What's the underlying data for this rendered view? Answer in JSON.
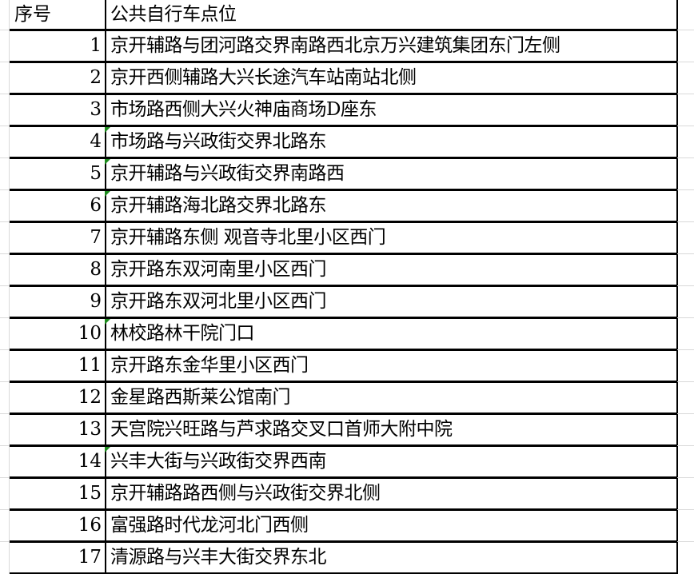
{
  "header": {
    "col_a": "序号",
    "col_b": "公共自行车点位"
  },
  "rows": [
    {
      "no": "1",
      "location": "京开辅路与团河路交界南路西北京万兴建筑集团东门左侧",
      "flag": false
    },
    {
      "no": "2",
      "location": "京开西侧辅路大兴长途汽车站南站北侧",
      "flag": false
    },
    {
      "no": "3",
      "location": "市场路西侧大兴火神庙商场D座东",
      "flag": false
    },
    {
      "no": "4",
      "location": "市场路与兴政街交界北路东",
      "flag": true
    },
    {
      "no": "5",
      "location": "京开辅路与兴政街交界南路西",
      "flag": true
    },
    {
      "no": "6",
      "location": "京开辅路海北路交界北路东",
      "flag": true
    },
    {
      "no": "7",
      "location": "京开辅路东侧 观音寺北里小区西门",
      "flag": false
    },
    {
      "no": "8",
      "location": "京开路东双河南里小区西门",
      "flag": false
    },
    {
      "no": "9",
      "location": "京开路东双河北里小区西门",
      "flag": false
    },
    {
      "no": "10",
      "location": "林校路林干院门口",
      "flag": true
    },
    {
      "no": "11",
      "location": "京开路东金华里小区西门",
      "flag": false
    },
    {
      "no": "12",
      "location": "金星路西斯莱公馆南门",
      "flag": false
    },
    {
      "no": "13",
      "location": "天宫院兴旺路与芦求路交叉口首师大附中院",
      "flag": false
    },
    {
      "no": "14",
      "location": "兴丰大街与兴政街交界西南",
      "flag": true
    },
    {
      "no": "15",
      "location": "京开辅路路西侧与兴政街交界北侧",
      "flag": false
    },
    {
      "no": "16",
      "location": "富强路时代龙河北门西侧",
      "flag": false
    },
    {
      "no": "17",
      "location": "清源路与兴丰大街交界东北",
      "flag": false
    }
  ],
  "colors": {
    "border": "#000000",
    "gridline": "#d9d9d9",
    "error_indicator": "#1e8c1e"
  }
}
